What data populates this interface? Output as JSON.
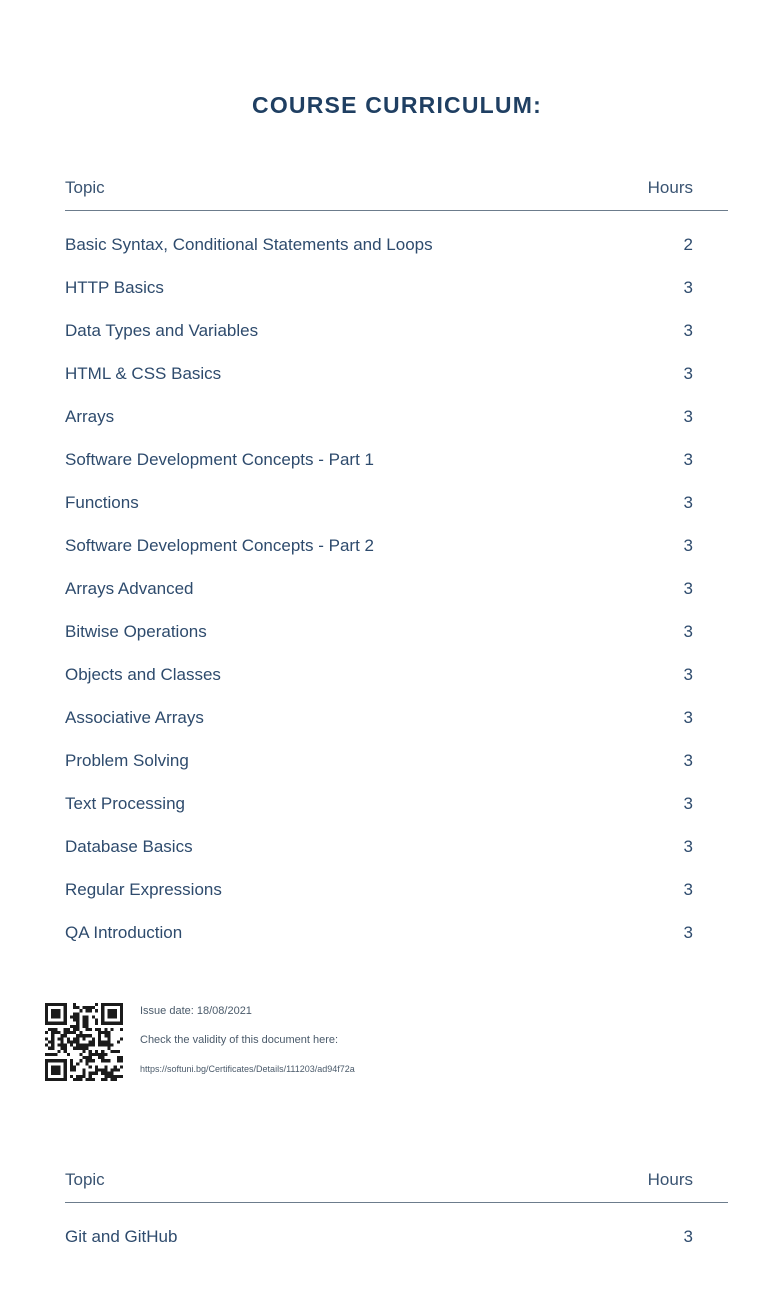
{
  "title": "COURSE CURRICULUM:",
  "table1": {
    "header": {
      "topic": "Topic",
      "hours": "Hours"
    },
    "rows": [
      {
        "topic": "Basic Syntax, Conditional Statements and Loops",
        "hours": "2"
      },
      {
        "topic": "HTTP Basics",
        "hours": "3"
      },
      {
        "topic": "Data Types and Variables",
        "hours": "3"
      },
      {
        "topic": "HTML & CSS Basics",
        "hours": "3"
      },
      {
        "topic": "Arrays",
        "hours": "3"
      },
      {
        "topic": "Software Development Concepts - Part 1",
        "hours": "3"
      },
      {
        "topic": "Functions",
        "hours": "3"
      },
      {
        "topic": "Software Development Concepts - Part 2",
        "hours": "3"
      },
      {
        "topic": "Arrays Advanced",
        "hours": "3"
      },
      {
        "topic": "Bitwise Operations",
        "hours": "3"
      },
      {
        "topic": "Objects and Classes",
        "hours": "3"
      },
      {
        "topic": "Associative Arrays",
        "hours": "3"
      },
      {
        "topic": "Problem Solving",
        "hours": "3"
      },
      {
        "topic": "Text Processing",
        "hours": "3"
      },
      {
        "topic": "Database Basics",
        "hours": "3"
      },
      {
        "topic": "Regular Expressions",
        "hours": "3"
      },
      {
        "topic": "QA Introduction",
        "hours": "3"
      }
    ]
  },
  "issue": {
    "date": "Issue date: 18/08/2021",
    "check": "Check the validity of this document here:",
    "url": "https://softuni.bg/Certificates/Details/111203/ad94f72a"
  },
  "table2": {
    "header": {
      "topic": "Topic",
      "hours": "Hours"
    },
    "rows": [
      {
        "topic": "Git and GitHub",
        "hours": "3"
      }
    ]
  }
}
